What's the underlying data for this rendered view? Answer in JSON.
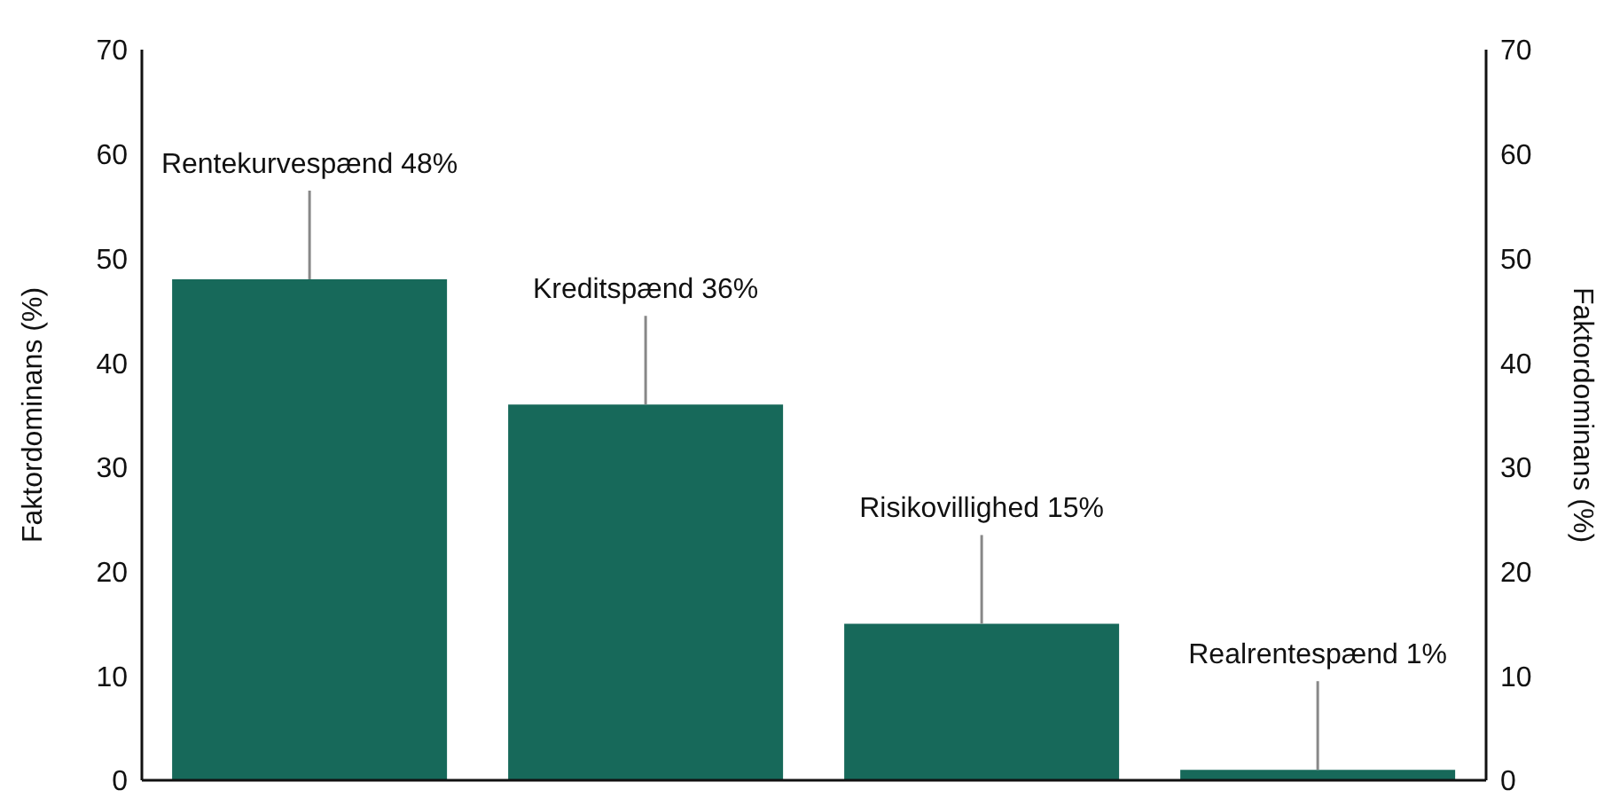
{
  "chart_data": {
    "type": "bar",
    "categories": [
      "Rentekurvespænd",
      "Kreditspænd",
      "Risikovillighed",
      "Realrentespænd"
    ],
    "values": [
      48,
      36,
      15,
      1
    ],
    "value_labels": [
      "48%",
      "36%",
      "15%",
      "1%"
    ],
    "color": "#17695a",
    "ylabel": "Faktordominans (%)",
    "y2label": "Faktordominans (%)",
    "ylim": [
      0,
      70
    ],
    "yticks": [
      0,
      10,
      20,
      30,
      40,
      50,
      60,
      70
    ],
    "y2lim": [
      0,
      70
    ],
    "y2ticks": [
      0,
      10,
      20,
      30,
      40,
      50,
      60,
      70
    ],
    "tick_labels": "y"
  }
}
